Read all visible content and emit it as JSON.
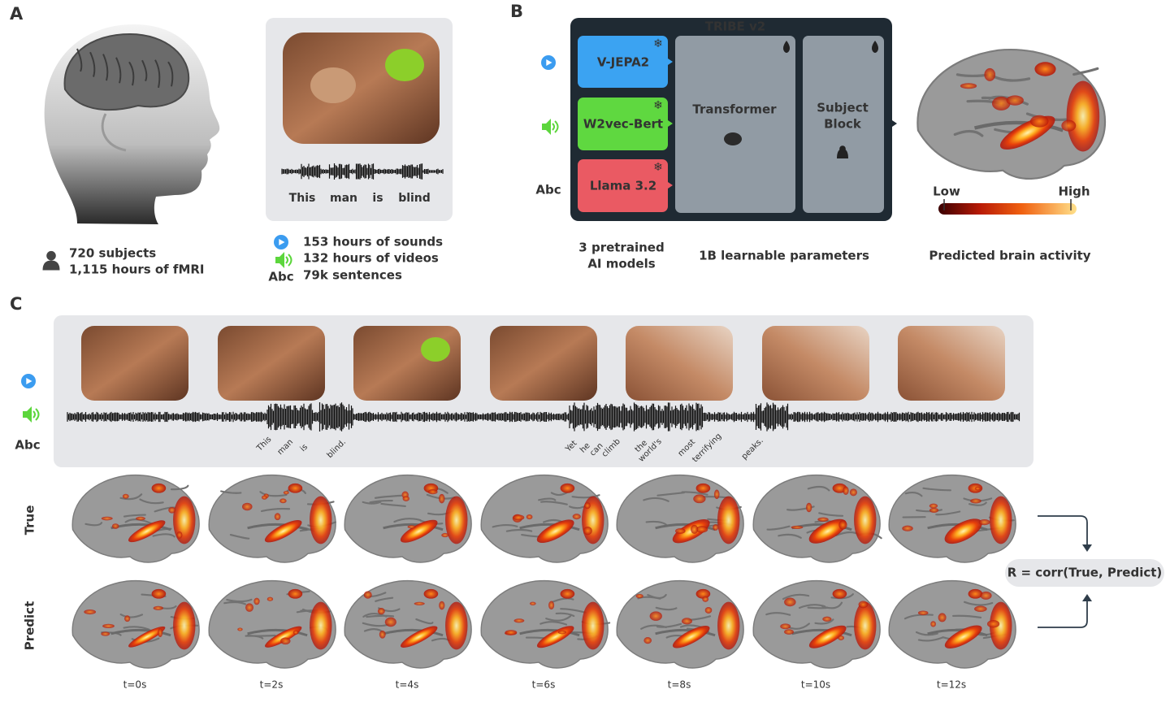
{
  "panel_a": {
    "label": "A",
    "subjects": "720 subjects",
    "hours": "1,115 hours of fMRI",
    "caption_words": [
      "This",
      "man",
      "is",
      "blind"
    ],
    "stats": [
      "153 hours of sounds",
      "132 hours of videos",
      "79k sentences"
    ],
    "text_icon": "Abc"
  },
  "panel_b": {
    "label": "B",
    "title": "TRIBE v2",
    "encoders": [
      "V-JEPA2",
      "W2vec-Bert",
      "Llama 3.2"
    ],
    "transformer": "Transformer",
    "subject_block": [
      "Subject",
      "Block"
    ],
    "text_icon": "Abc",
    "scale_low": "Low",
    "scale_high": "High",
    "captions": [
      "3 pretrained",
      "AI models",
      "1B learnable parameters",
      "Predicted brain activity"
    ]
  },
  "panel_c": {
    "label": "C",
    "text_icon": "Abc",
    "words": [
      "This",
      "man",
      "is",
      "blind.",
      "Yet",
      "he",
      "can",
      "climb",
      "the",
      "world's",
      "most",
      "terrifying",
      "peaks."
    ],
    "rows": [
      "True",
      "Predict"
    ],
    "times": [
      "t=0s",
      "t=2s",
      "t=4s",
      "t=6s",
      "t=8s",
      "t=10s",
      "t=12s"
    ],
    "formula": "R = corr(True, Predict)"
  }
}
